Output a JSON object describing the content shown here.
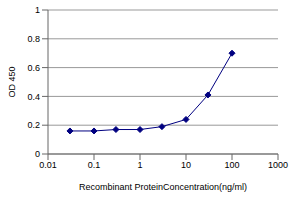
{
  "chart_data": {
    "type": "line",
    "x_label": "Recombinant ProteinConcentration(ng/ml)",
    "y_label": "OD 450",
    "x": [
      0.03,
      0.1,
      0.3,
      1,
      3,
      10,
      30,
      100
    ],
    "values": [
      0.16,
      0.16,
      0.17,
      0.17,
      0.19,
      0.24,
      0.41,
      0.7
    ],
    "color": "#000080",
    "marker": "diamond",
    "log": "x",
    "xlim": [
      0.01,
      1000
    ],
    "xticks": [
      0.01,
      0.1,
      1,
      10,
      100,
      1000
    ],
    "ylim": [
      0,
      1
    ],
    "yticks": [
      0,
      0.2,
      0.4,
      0.6,
      0.8,
      1
    ],
    "grid": true
  }
}
